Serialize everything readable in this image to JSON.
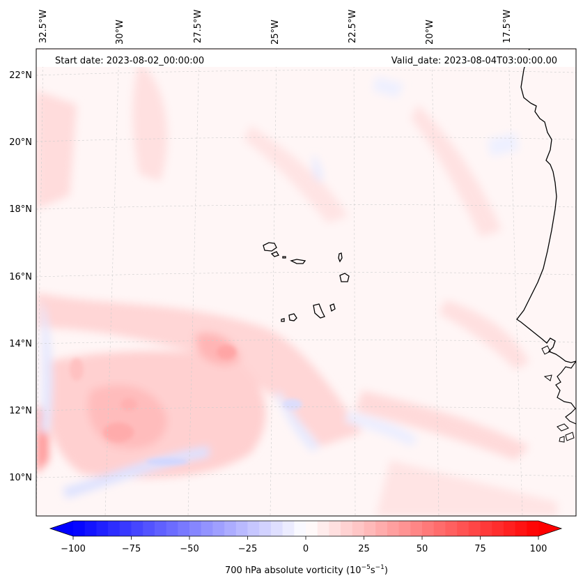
{
  "map": {
    "header": {
      "start_date": "Start date: 2023-08-02_00:00:00",
      "valid_date": "Valid_date: 2023-08-04T03:00:00.00"
    },
    "lon_labels": [
      "32.5°W",
      "30°W",
      "27.5°W",
      "25°W",
      "22.5°W",
      "20°W",
      "17.5°W"
    ],
    "lat_labels": [
      "22°N",
      "20°N",
      "18°N",
      "16°N",
      "14°N",
      "12°N",
      "10°N"
    ],
    "islands": [
      "Santo Antão",
      "São Vicente",
      "São Nicolau",
      "Sal",
      "Boa Vista",
      "Maio",
      "Santiago",
      "Fogo",
      "Brava"
    ],
    "colorbar": {
      "label_prefix": "700 hPa absolute vorticity (10",
      "label_exp1": "−5",
      "label_mid": "s",
      "label_exp2": "−1",
      "label_suffix": ")",
      "tick_labels": [
        "−100",
        "−75",
        "−50",
        "−25",
        "0",
        "25",
        "50",
        "75",
        "100"
      ],
      "vmin": -100,
      "vmax": 100,
      "levels": 40,
      "cmap_low": "#0000ff",
      "cmap_mid": "#ffffff",
      "cmap_high": "#ff0000"
    }
  }
}
